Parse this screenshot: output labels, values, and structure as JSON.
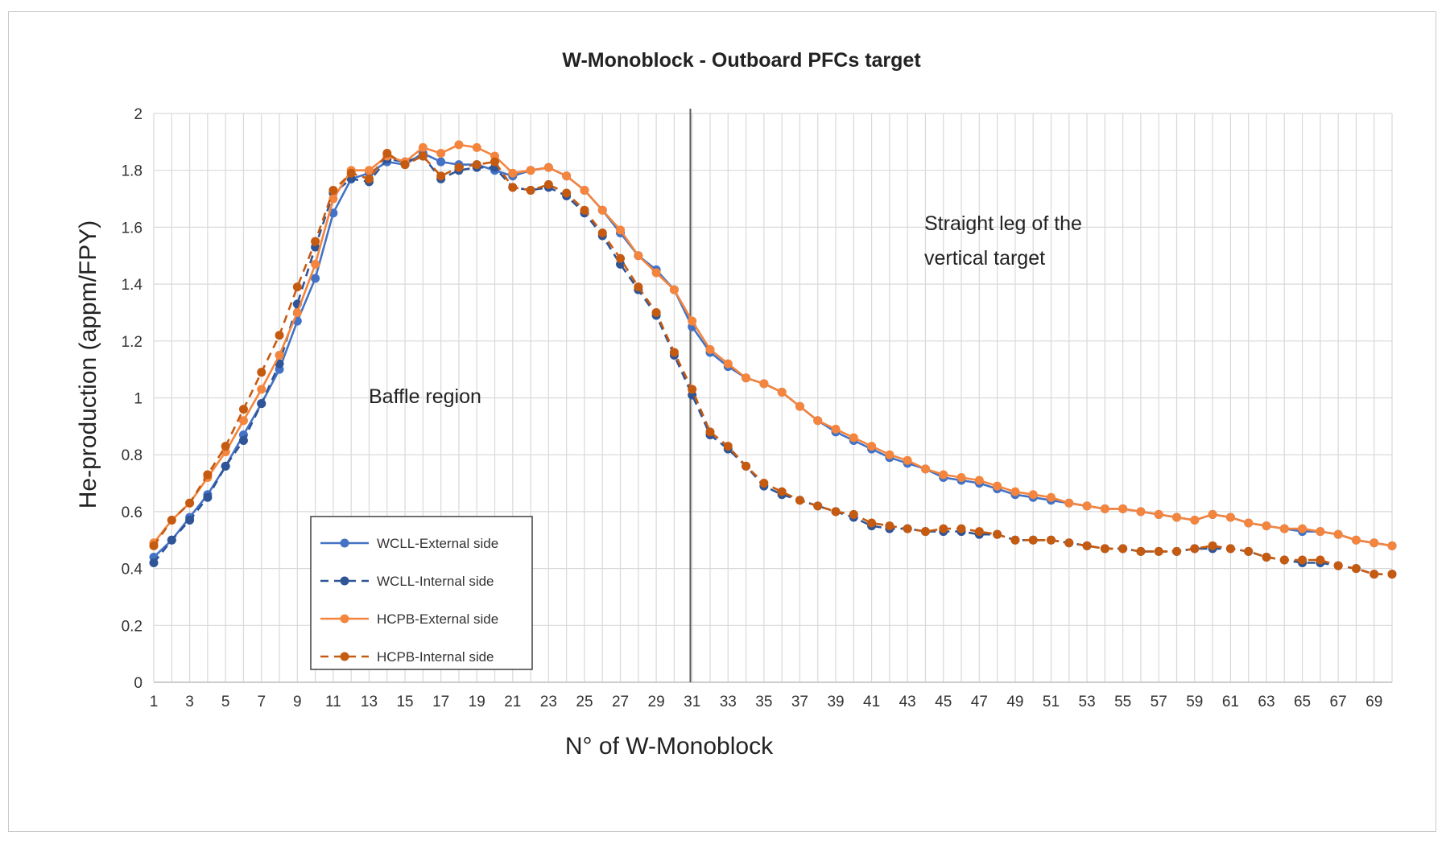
{
  "chart_data": {
    "type": "line",
    "title": "W-Monoblock - Outboard PFCs target",
    "xlabel": "N° of W-Monoblock",
    "ylabel": "He-production  (appm/FPY)",
    "xlim": [
      1,
      70
    ],
    "ylim": [
      0,
      2
    ],
    "y_ticks": [
      "0",
      "0.2",
      "0.4",
      "0.6",
      "0.8",
      "1",
      "1.2",
      "1.4",
      "1.6",
      "1.8",
      "2"
    ],
    "x_ticks": [
      "1",
      "3",
      "5",
      "7",
      "9",
      "11",
      "13",
      "15",
      "17",
      "19",
      "21",
      "23",
      "25",
      "27",
      "29",
      "31",
      "33",
      "35",
      "37",
      "39",
      "41",
      "43",
      "45",
      "47",
      "49",
      "51",
      "53",
      "55",
      "57",
      "59",
      "61",
      "63",
      "65",
      "67",
      "69"
    ],
    "grid": true,
    "legend_position": "bottom-left",
    "annotations": [
      "Straight leg of the vertical target",
      "Baffle region"
    ],
    "vertical_marker_x": 30.9,
    "series": [
      {
        "name": "WCLL-External side",
        "color": "#4472c4",
        "dash": "solid",
        "values": [
          0.44,
          0.5,
          0.58,
          0.66,
          0.76,
          0.87,
          0.98,
          1.1,
          1.27,
          1.42,
          1.65,
          1.77,
          1.79,
          1.83,
          1.82,
          1.86,
          1.83,
          1.82,
          1.82,
          1.8,
          1.78,
          1.8,
          1.81,
          1.78,
          1.73,
          1.66,
          1.58,
          1.5,
          1.45,
          1.38,
          1.25,
          1.16,
          1.11,
          1.07,
          1.05,
          1.02,
          0.97,
          0.92,
          0.88,
          0.85,
          0.82,
          0.79,
          0.77,
          0.75,
          0.72,
          0.71,
          0.7,
          0.68,
          0.66,
          0.65,
          0.64,
          0.63,
          0.62,
          0.61,
          0.61,
          0.6,
          0.59,
          0.58,
          0.57,
          0.59,
          0.58,
          0.56,
          0.55,
          0.54,
          0.53,
          0.53,
          0.52,
          0.5,
          0.49,
          0.48
        ]
      },
      {
        "name": "WCLL-Internal side",
        "color": "#2f5597",
        "dash": "dash",
        "values": [
          0.42,
          0.5,
          0.57,
          0.65,
          0.76,
          0.85,
          0.98,
          1.12,
          1.33,
          1.53,
          1.72,
          1.77,
          1.76,
          1.84,
          1.83,
          1.85,
          1.77,
          1.8,
          1.81,
          1.81,
          1.74,
          1.73,
          1.74,
          1.71,
          1.65,
          1.57,
          1.47,
          1.38,
          1.29,
          1.15,
          1.01,
          0.87,
          0.82,
          0.76,
          0.69,
          0.66,
          0.64,
          0.62,
          0.6,
          0.58,
          0.55,
          0.54,
          0.54,
          0.53,
          0.53,
          0.53,
          0.52,
          0.52,
          0.5,
          0.5,
          0.5,
          0.49,
          0.48,
          0.47,
          0.47,
          0.46,
          0.46,
          0.46,
          0.47,
          0.47,
          0.47,
          0.46,
          0.44,
          0.43,
          0.42,
          0.42,
          0.41,
          0.4,
          0.38,
          0.38
        ]
      },
      {
        "name": "HCPB-External side",
        "color": "#f4853e",
        "dash": "solid",
        "values": [
          0.49,
          0.57,
          0.63,
          0.72,
          0.81,
          0.92,
          1.03,
          1.15,
          1.3,
          1.47,
          1.7,
          1.8,
          1.8,
          1.85,
          1.83,
          1.88,
          1.86,
          1.89,
          1.88,
          1.85,
          1.79,
          1.8,
          1.81,
          1.78,
          1.73,
          1.66,
          1.59,
          1.5,
          1.44,
          1.38,
          1.27,
          1.17,
          1.12,
          1.07,
          1.05,
          1.02,
          0.97,
          0.92,
          0.89,
          0.86,
          0.83,
          0.8,
          0.78,
          0.75,
          0.73,
          0.72,
          0.71,
          0.69,
          0.67,
          0.66,
          0.65,
          0.63,
          0.62,
          0.61,
          0.61,
          0.6,
          0.59,
          0.58,
          0.57,
          0.59,
          0.58,
          0.56,
          0.55,
          0.54,
          0.54,
          0.53,
          0.52,
          0.5,
          0.49,
          0.48
        ]
      },
      {
        "name": "HCPB-Internal side",
        "color": "#c55a11",
        "dash": "dash",
        "values": [
          0.48,
          0.57,
          0.63,
          0.73,
          0.83,
          0.96,
          1.09,
          1.22,
          1.39,
          1.55,
          1.73,
          1.79,
          1.77,
          1.86,
          1.82,
          1.85,
          1.78,
          1.81,
          1.82,
          1.83,
          1.74,
          1.73,
          1.75,
          1.72,
          1.66,
          1.58,
          1.49,
          1.39,
          1.3,
          1.16,
          1.03,
          0.88,
          0.83,
          0.76,
          0.7,
          0.67,
          0.64,
          0.62,
          0.6,
          0.59,
          0.56,
          0.55,
          0.54,
          0.53,
          0.54,
          0.54,
          0.53,
          0.52,
          0.5,
          0.5,
          0.5,
          0.49,
          0.48,
          0.47,
          0.47,
          0.46,
          0.46,
          0.46,
          0.47,
          0.48,
          0.47,
          0.46,
          0.44,
          0.43,
          0.43,
          0.43,
          0.41,
          0.4,
          0.38,
          0.38
        ]
      }
    ]
  }
}
